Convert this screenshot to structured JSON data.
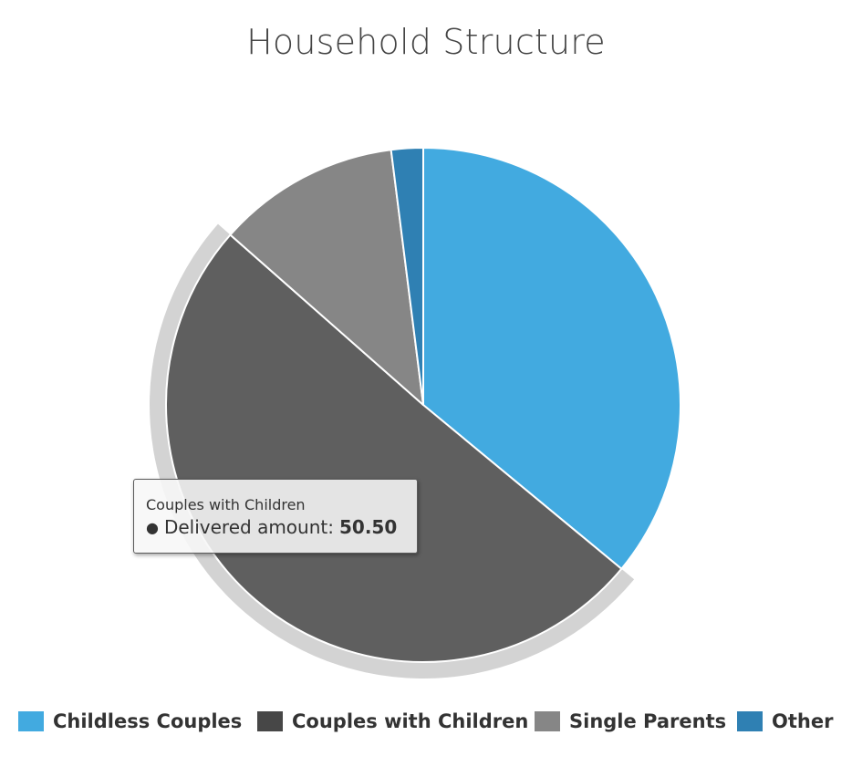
{
  "chart_data": {
    "type": "pie",
    "title": "Household Structure",
    "categories": [
      "Childless Couples",
      "Couples with Children",
      "Single Parents",
      "Other"
    ],
    "values": [
      36.0,
      50.5,
      11.5,
      2.0
    ],
    "colors": [
      "#42aae0",
      "#5f5f5f",
      "#868686",
      "#2f80b3"
    ],
    "highlighted": "Couples with Children",
    "legend_position": "bottom",
    "tooltip": {
      "title": "Couples with Children",
      "series_label": "Delivered amount:",
      "value": "50.50"
    }
  }
}
